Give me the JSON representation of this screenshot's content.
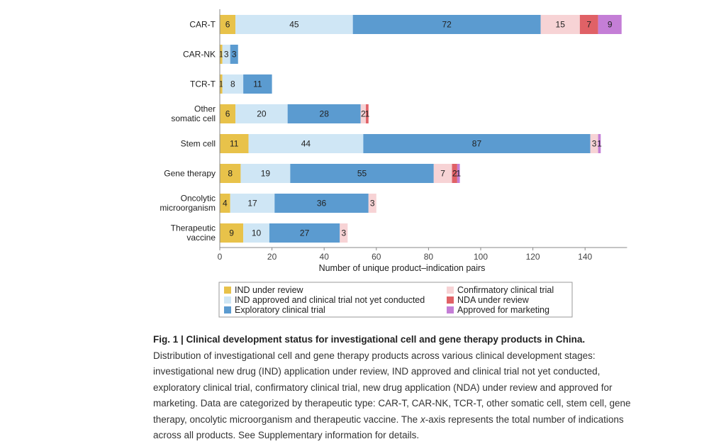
{
  "chart_data": {
    "type": "bar",
    "orientation": "horizontal",
    "stacked": true,
    "categories": [
      [
        "CAR-T"
      ],
      [
        "CAR-NK"
      ],
      [
        "TCR-T"
      ],
      [
        "Other",
        "somatic cell"
      ],
      [
        "Stem cell"
      ],
      [
        "Gene therapy"
      ],
      [
        "Oncolytic",
        "microorganism"
      ],
      [
        "Therapeutic",
        "vaccine"
      ]
    ],
    "series": [
      {
        "name": "IND under review",
        "color": "#e8c24a",
        "values": [
          6,
          1,
          1,
          6,
          11,
          8,
          4,
          9
        ]
      },
      {
        "name": "IND approved and clinical trial not yet conducted",
        "color": "#cfe6f5",
        "values": [
          45,
          3,
          8,
          20,
          44,
          19,
          17,
          10
        ]
      },
      {
        "name": "Exploratory clinical trial",
        "color": "#5b9bd0",
        "values": [
          72,
          3,
          11,
          28,
          87,
          55,
          36,
          27
        ]
      },
      {
        "name": "Confirmatory clinical trial",
        "color": "#f7d3d5",
        "values": [
          15,
          0,
          0,
          2,
          3,
          7,
          3,
          3
        ]
      },
      {
        "name": "NDA under review",
        "color": "#e06166",
        "values": [
          7,
          0,
          0,
          1,
          0,
          2,
          0,
          0
        ]
      },
      {
        "name": "Approved for marketing",
        "color": "#c47ed6",
        "values": [
          9,
          0,
          0,
          0,
          1,
          1,
          0,
          0
        ]
      }
    ],
    "xlabel": "Number of unique product–indication pairs",
    "xlim": [
      0,
      155
    ],
    "xticks": [
      0,
      20,
      40,
      60,
      80,
      100,
      120,
      140
    ],
    "legend_position": "bottom",
    "legend_order": [
      0,
      3,
      1,
      4,
      2,
      5
    ]
  },
  "caption": {
    "title": "Fig. 1 | Clinical development status for investigational cell and gene therapy products in China.",
    "body_part1": "Distribution of investigational cell and gene therapy products across various clinical development stages: investigational new drug (IND) application under review, IND approved and clinical trial not yet conducted, exploratory clinical trial, confirmatory clinical trial, new drug application (NDA) under review and approved for marketing. Data are categorized by therapeutic type: CAR-T, CAR-NK, TCR-T, other somatic cell, stem cell, gene therapy, oncolytic microorganism and therapeutic vaccine. The ",
    "body_italic": "x",
    "body_part2": "-axis represents the total number of indications across all products. See Supplementary information for details."
  }
}
